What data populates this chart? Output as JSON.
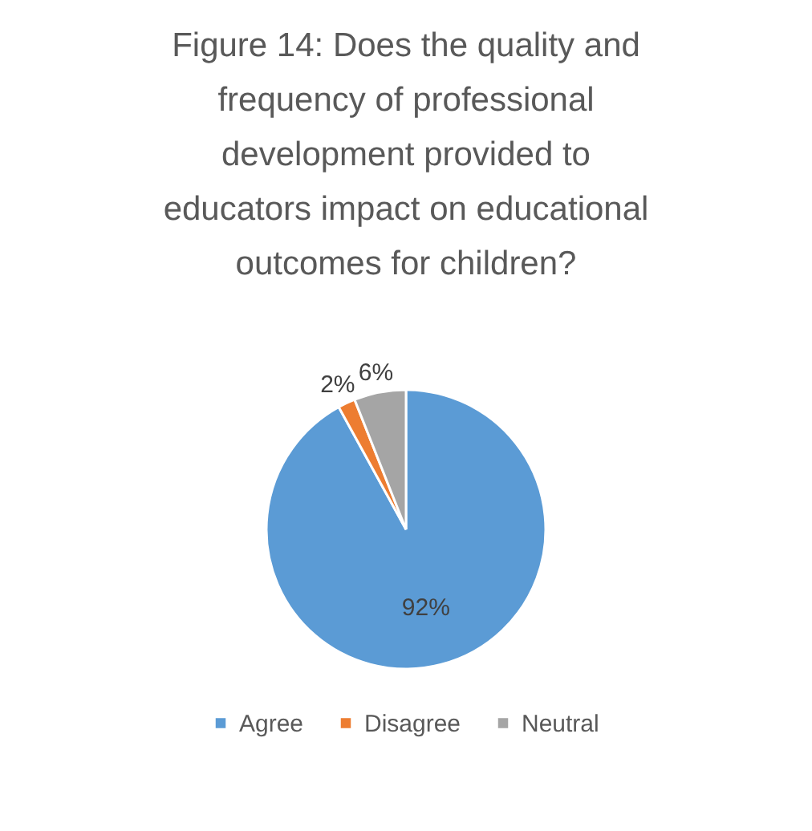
{
  "chart_data": {
    "type": "pie",
    "title": "Figure 14: Does the quality and frequency of professional development provided to educators impact on educational outcomes for children?",
    "categories": [
      "Agree",
      "Disagree",
      "Neutral"
    ],
    "values": [
      92,
      2,
      6
    ],
    "colors": [
      "#5b9bd5",
      "#ed7d31",
      "#a5a5a5"
    ],
    "value_labels": [
      "92%",
      "2%",
      "6%"
    ],
    "legend": "bottom"
  }
}
